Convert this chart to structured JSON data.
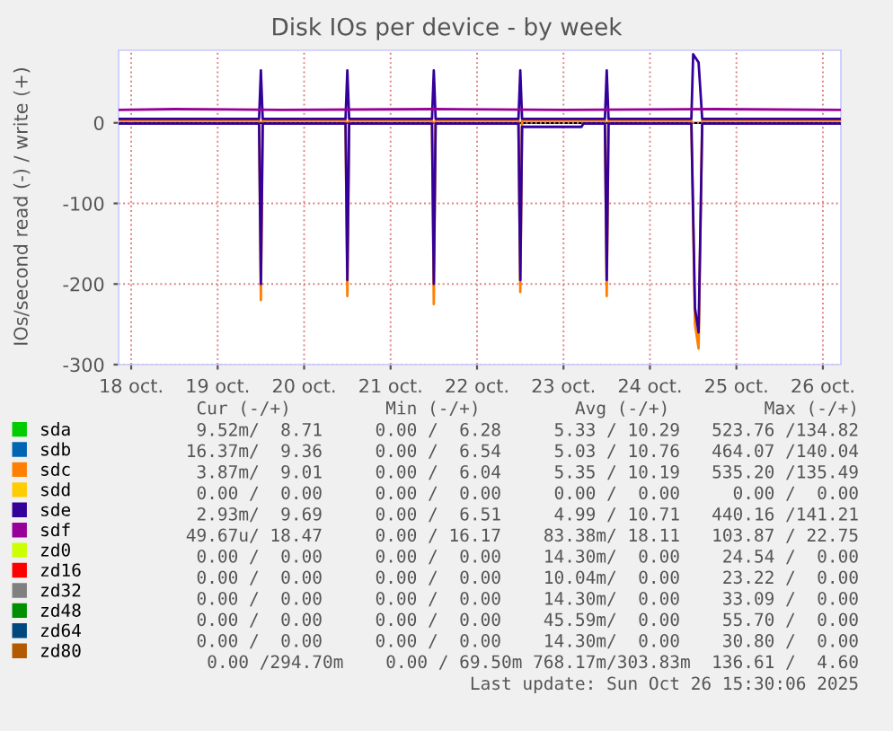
{
  "chart_data": {
    "type": "line",
    "title": "Disk IOs per device - by week",
    "ylabel": "IOs/second read (-) / write (+)",
    "xlim": [
      "2025-10-18T08:30",
      "2025-10-26T17:00"
    ],
    "xticks": [
      {
        "value": "2025-10-18T12:00",
        "label": "18 oct."
      },
      {
        "value": "2025-10-19T12:00",
        "label": "19 oct."
      },
      {
        "value": "2025-10-20T12:00",
        "label": "20 oct."
      },
      {
        "value": "2025-10-21T12:00",
        "label": "21 oct."
      },
      {
        "value": "2025-10-22T12:00",
        "label": "22 oct."
      },
      {
        "value": "2025-10-23T12:00",
        "label": "23 oct."
      },
      {
        "value": "2025-10-24T12:00",
        "label": "24 oct."
      },
      {
        "value": "2025-10-25T12:00",
        "label": "25 oct."
      },
      {
        "value": "2025-10-26T12:00",
        "label": "26 oct."
      }
    ],
    "ylim": [
      -300,
      90
    ],
    "yticks": [
      -300,
      -200,
      -100,
      0
    ],
    "grid": true,
    "legend": "bottom",
    "series": [
      {
        "name": "sda",
        "color": "#00cc00",
        "values": [
          null,
          null
        ]
      },
      {
        "name": "sdb",
        "color": "#0066b3",
        "values": [
          null,
          null
        ]
      },
      {
        "name": "sdc",
        "color": "#ff8000",
        "x": [
          "2025-10-18T08:30",
          "2025-10-19T23:30",
          "2025-10-20T00:00",
          "2025-10-20T00:30",
          "2025-10-20T23:30",
          "2025-10-21T00:00",
          "2025-10-21T00:30",
          "2025-10-21T23:30",
          "2025-10-22T00:00",
          "2025-10-22T00:30",
          "2025-10-22T23:30",
          "2025-10-23T00:00",
          "2025-10-23T00:30",
          "2025-10-23T23:30",
          "2025-10-24T00:00",
          "2025-10-24T00:30",
          "2025-10-24T23:30",
          "2025-10-25T00:30",
          "2025-10-25T01:30",
          "2025-10-25T02:30",
          "2025-10-26T17:00"
        ],
        "values": [
          3,
          3,
          -220,
          3,
          3,
          -215,
          3,
          3,
          -225,
          3,
          3,
          -210,
          3,
          3,
          -215,
          3,
          3,
          -250,
          -280,
          3,
          3
        ]
      },
      {
        "name": "sdd",
        "color": "#ffcc00",
        "values": [
          null,
          null
        ]
      },
      {
        "name": "sde",
        "color": "#330099",
        "x": [
          "2025-10-18T08:30",
          "2025-10-19T23:30",
          "2025-10-20T00:00",
          "2025-10-20T00:30",
          "2025-10-20T23:30",
          "2025-10-21T00:00",
          "2025-10-21T00:30",
          "2025-10-21T23:30",
          "2025-10-22T00:00",
          "2025-10-22T00:30",
          "2025-10-22T23:30",
          "2025-10-23T00:00",
          "2025-10-23T00:30",
          "2025-10-23T23:30",
          "2025-10-24T00:00",
          "2025-10-24T00:30",
          "2025-10-24T23:30",
          "2025-10-25T00:00",
          "2025-10-25T01:30",
          "2025-10-25T02:30",
          "2025-10-26T17:00"
        ],
        "values": [
          5,
          5,
          65,
          5,
          5,
          65,
          5,
          5,
          65,
          5,
          5,
          65,
          5,
          5,
          65,
          5,
          5,
          85,
          75,
          5,
          5
        ]
      },
      {
        "color": "#330099",
        "x": [
          "2025-10-18T08:30",
          "2025-10-19T23:30",
          "2025-10-20T00:00",
          "2025-10-20T00:30",
          "2025-10-20T23:30",
          "2025-10-21T00:00",
          "2025-10-21T00:30",
          "2025-10-21T23:30",
          "2025-10-22T00:00",
          "2025-10-22T00:30",
          "2025-10-22T23:30",
          "2025-10-23T00:00",
          "2025-10-23T00:30",
          "2025-10-23T17:00",
          "2025-10-23T17:30",
          "2025-10-23T23:30",
          "2025-10-24T00:00",
          "2025-10-24T00:30",
          "2025-10-24T23:30",
          "2025-10-25T00:30",
          "2025-10-25T01:30",
          "2025-10-25T02:30",
          "2025-10-26T17:00"
        ],
        "values": [
          -1,
          -1,
          -200,
          -1,
          -1,
          -195,
          -1,
          -1,
          -200,
          -1,
          -1,
          -195,
          -5,
          -5,
          -1,
          -1,
          -195,
          -1,
          -1,
          -230,
          -260,
          -1,
          -1
        ]
      },
      {
        "name": "sdf",
        "color": "#990099",
        "x": [
          "2025-10-18T08:30",
          "2025-10-19T00:00",
          "2025-10-20T06:00",
          "2025-10-22T00:00",
          "2025-10-23T12:00",
          "2025-10-25T06:00",
          "2025-10-26T17:00"
        ],
        "values": [
          16,
          17,
          16,
          17,
          16,
          17,
          16
        ]
      },
      {
        "name": "zd0",
        "color": "#ccff00",
        "values": [
          null,
          null
        ]
      },
      {
        "name": "zd16",
        "color": "#ff0000",
        "values": [
          null,
          null
        ]
      },
      {
        "name": "zd32",
        "color": "#808080",
        "values": [
          null,
          null
        ]
      },
      {
        "name": "zd48",
        "color": "#008f00",
        "values": [
          null,
          null
        ]
      },
      {
        "name": "zd64",
        "color": "#00487d",
        "values": [
          null,
          null
        ]
      },
      {
        "name": "zd80",
        "color": "#b35a00",
        "values": [
          null,
          null
        ]
      }
    ],
    "annotations": [
      "Cur (-/+)         Min (-/+)         Avg (-/+)         Max (-/+)",
      "9.52m/  8.71     0.00 /  6.28     5.33 / 10.29   523.76 /134.82",
      "16.37m/  9.36     0.00 /  6.54     5.03 / 10.76   464.07 /140.04",
      "3.87m/  9.01     0.00 /  6.04     5.35 / 10.19   535.20 /135.49",
      "0.00 /  0.00     0.00 /  0.00     0.00 /  0.00     0.00 /  0.00",
      "2.93m/  9.69     0.00 /  6.51     4.99 / 10.71   440.16 /141.21",
      "49.67u/ 18.47     0.00 / 16.17    83.38m/ 18.11   103.87 / 22.75",
      "0.00 /  0.00     0.00 /  0.00    14.30m/  0.00    24.54 /  0.00",
      "0.00 /  0.00     0.00 /  0.00    10.04m/  0.00    23.22 /  0.00",
      "0.00 /  0.00     0.00 /  0.00    14.30m/  0.00    33.09 /  0.00",
      "0.00 /  0.00     0.00 /  0.00    45.59m/  0.00    55.70 /  0.00",
      "0.00 /  0.00     0.00 /  0.00    14.30m/  0.00    30.80 /  0.00",
      "0.00 /294.70m    0.00 / 69.50m 768.17m/303.83m  136.61 /  4.60",
      "Last update: Sun Oct 26 15:30:06 2025"
    ]
  }
}
